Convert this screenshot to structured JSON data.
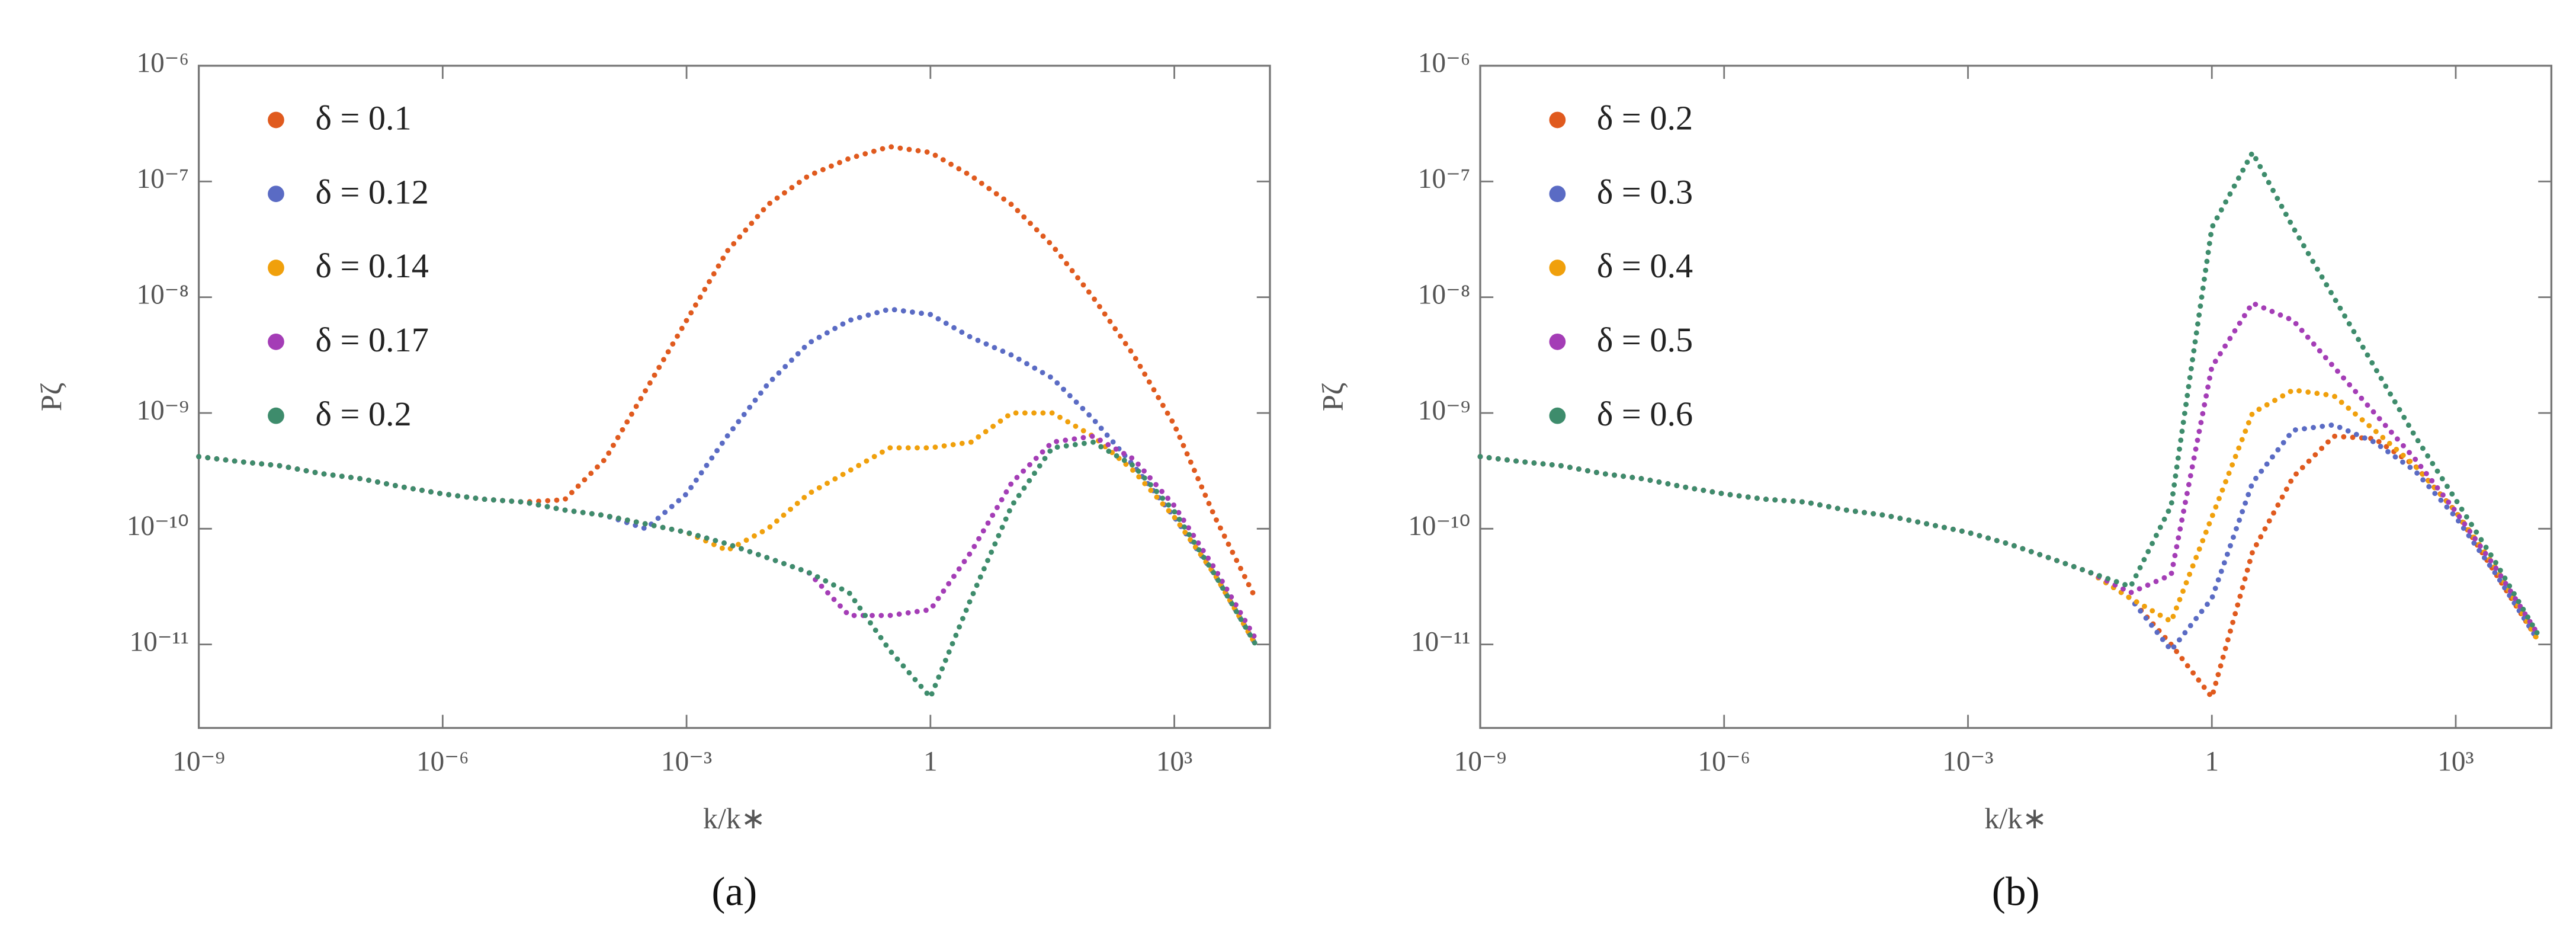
{
  "chart_data": [
    {
      "type": "line",
      "x_label": "k/k∗",
      "y_label": "Pζ",
      "panel_label": "(a)",
      "xscale": "log",
      "yscale": "log",
      "legend": "upper left",
      "xlim": [
        1e-09,
        15000
      ],
      "ylim": [
        1.9e-12,
        1e-06
      ],
      "xticks": [
        {
          "value": 1e-09,
          "label": "10⁻⁹"
        },
        {
          "value": 1e-06,
          "label": "10⁻⁶"
        },
        {
          "value": 0.001,
          "label": "10⁻³"
        },
        1,
        {
          "value": 1000,
          "label": "10³"
        }
      ],
      "yticks": [
        {
          "value": 1e-11,
          "label": "10⁻¹¹"
        },
        {
          "value": 1e-10,
          "label": "10⁻¹⁰"
        },
        {
          "value": 1e-09,
          "label": "10⁻⁹"
        },
        {
          "value": 1e-08,
          "label": "10⁻⁸"
        },
        {
          "value": 1e-07,
          "label": "10⁻⁷"
        },
        {
          "value": 1e-06,
          "label": "10⁻⁶"
        }
      ],
      "x": [
        1e-09,
        3.16e-09,
        1e-08,
        3.16e-08,
        1e-07,
        3.16e-07,
        1e-06,
        3.16e-06,
        1e-05,
        3.16e-05,
        0.0001,
        0.000316,
        0.001,
        0.00316,
        0.01,
        0.0316,
        0.1,
        0.316,
        1,
        3.16,
        10,
        31.6,
        100,
        316,
        1000,
        3160,
        10000
      ],
      "series": [
        {
          "name": "δ = 0.1",
          "color": "#e05a1e",
          "values": [
            4.2e-10,
            3.8e-10,
            3.5e-10,
            3e-10,
            2.7e-10,
            2.3e-10,
            2e-10,
            1.8e-10,
            1.7e-10,
            1.78e-10,
            4e-10,
            1.58e-09,
            6.3e-09,
            2.5e-08,
            6.3e-08,
            1.12e-07,
            1.58e-07,
            2e-07,
            1.78e-07,
            1.12e-07,
            6.3e-08,
            2.8e-08,
            1e-08,
            3.16e-09,
            7.9e-10,
            1.26e-10,
            2.5e-11
          ]
        },
        {
          "name": "δ = 0.12",
          "color": "#5a6bc4",
          "values": [
            4.2e-10,
            3.8e-10,
            3.5e-10,
            3e-10,
            2.7e-10,
            2.3e-10,
            2e-10,
            1.8e-10,
            1.7e-10,
            1.45e-10,
            1.3e-10,
            1e-10,
            2e-10,
            6.3e-10,
            1.78e-09,
            4e-09,
            6.3e-09,
            7.9e-09,
            7.1e-09,
            4.5e-09,
            3.16e-09,
            2e-09,
            8.9e-10,
            3.5e-10,
            1.26e-10,
            4e-11,
            1e-11
          ]
        },
        {
          "name": "δ = 0.14",
          "color": "#f0a00c",
          "values": [
            4.2e-10,
            3.8e-10,
            3.5e-10,
            3e-10,
            2.7e-10,
            2.3e-10,
            2e-10,
            1.8e-10,
            1.7e-10,
            1.45e-10,
            1.3e-10,
            1.1e-10,
            9.3e-11,
            6.5e-11,
            1e-10,
            2e-10,
            3.16e-10,
            5e-10,
            5e-10,
            5.6e-10,
            1e-09,
            1e-09,
            6.3e-10,
            3.16e-10,
            1.26e-10,
            4e-11,
            1e-11
          ]
        },
        {
          "name": "δ = 0.17",
          "color": "#a43db6",
          "values": [
            4.2e-10,
            3.8e-10,
            3.5e-10,
            3e-10,
            2.7e-10,
            2.3e-10,
            2e-10,
            1.8e-10,
            1.7e-10,
            1.45e-10,
            1.3e-10,
            1.1e-10,
            9.3e-11,
            7.4e-11,
            5.6e-11,
            4.2e-11,
            1.78e-11,
            1.78e-11,
            2e-11,
            6.3e-11,
            2.5e-10,
            5.6e-10,
            6.3e-10,
            4e-10,
            1.58e-10,
            4.5e-11,
            1.12e-11
          ]
        },
        {
          "name": "δ = 0.2",
          "color": "#3e8c6c",
          "values": [
            4.2e-10,
            3.8e-10,
            3.5e-10,
            3e-10,
            2.7e-10,
            2.3e-10,
            2e-10,
            1.8e-10,
            1.7e-10,
            1.45e-10,
            1.3e-10,
            1.1e-10,
            9.3e-11,
            7.4e-11,
            5.6e-11,
            4.2e-11,
            2.8e-11,
            8.9e-12,
            3.5e-12,
            2.5e-11,
            1.58e-10,
            5e-10,
            5.6e-10,
            3.5e-10,
            1.41e-10,
            4e-11,
            1e-11
          ]
        }
      ]
    },
    {
      "type": "line",
      "x_label": "k/k∗",
      "y_label": "Pζ",
      "panel_label": "(b)",
      "xscale": "log",
      "yscale": "log",
      "legend": "upper left",
      "xlim": [
        1e-09,
        15000
      ],
      "ylim": [
        1.9e-12,
        1e-06
      ],
      "xticks": [
        {
          "value": 1e-09,
          "label": "10⁻⁹"
        },
        {
          "value": 1e-06,
          "label": "10⁻⁶"
        },
        {
          "value": 0.001,
          "label": "10⁻³"
        },
        1,
        {
          "value": 1000,
          "label": "10³"
        }
      ],
      "yticks": [
        {
          "value": 1e-11,
          "label": "10⁻¹¹"
        },
        {
          "value": 1e-10,
          "label": "10⁻¹⁰"
        },
        {
          "value": 1e-09,
          "label": "10⁻⁹"
        },
        {
          "value": 1e-08,
          "label": "10⁻⁸"
        },
        {
          "value": 1e-07,
          "label": "10⁻⁷"
        },
        {
          "value": 1e-06,
          "label": "10⁻⁶"
        }
      ],
      "x": [
        1e-09,
        3.16e-09,
        1e-08,
        3.16e-08,
        1e-07,
        3.16e-07,
        1e-06,
        3.16e-06,
        1e-05,
        3.16e-05,
        0.0001,
        0.000316,
        0.001,
        0.00316,
        0.01,
        0.0316,
        0.1,
        0.316,
        1,
        3.16,
        10,
        31.6,
        100,
        316,
        1000,
        3160,
        10000
      ],
      "series": [
        {
          "name": "δ = 0.2",
          "color": "#e05a1e",
          "values": [
            4.2e-10,
            3.8e-10,
            3.5e-10,
            3e-10,
            2.7e-10,
            2.3e-10,
            2e-10,
            1.8e-10,
            1.7e-10,
            1.45e-10,
            1.3e-10,
            1.1e-10,
            9.3e-11,
            7.4e-11,
            5.6e-11,
            4.2e-11,
            2.5e-11,
            1e-11,
            3.5e-12,
            6.3e-11,
            2.8e-10,
            6.3e-10,
            6e-10,
            3.5e-10,
            1.41e-10,
            4e-11,
            1.12e-11
          ]
        },
        {
          "name": "δ = 0.3",
          "color": "#5a6bc4",
          "values": [
            4.2e-10,
            3.8e-10,
            3.5e-10,
            3e-10,
            2.7e-10,
            2.3e-10,
            2e-10,
            1.8e-10,
            1.7e-10,
            1.45e-10,
            1.3e-10,
            1.1e-10,
            9.3e-11,
            7.4e-11,
            5.6e-11,
            4.2e-11,
            2.5e-11,
            8.9e-12,
            2.5e-11,
            2.5e-10,
            7.1e-10,
            7.9e-10,
            5.6e-10,
            3.16e-10,
            1.26e-10,
            4e-11,
            1.12e-11
          ]
        },
        {
          "name": "δ = 0.4",
          "color": "#f0a00c",
          "values": [
            4.2e-10,
            3.8e-10,
            3.5e-10,
            3e-10,
            2.7e-10,
            2.3e-10,
            2e-10,
            1.8e-10,
            1.7e-10,
            1.45e-10,
            1.3e-10,
            1.1e-10,
            9.3e-11,
            7.4e-11,
            5.6e-11,
            4.2e-11,
            2.5e-11,
            1.58e-11,
            1.26e-10,
            1e-09,
            1.58e-09,
            1.41e-09,
            7.1e-10,
            3.5e-10,
            1.41e-10,
            4.5e-11,
            1.12e-11
          ]
        },
        {
          "name": "δ = 0.5",
          "color": "#a43db6",
          "values": [
            4.2e-10,
            3.8e-10,
            3.5e-10,
            3e-10,
            2.7e-10,
            2.3e-10,
            2e-10,
            1.8e-10,
            1.7e-10,
            1.45e-10,
            1.3e-10,
            1.1e-10,
            9.3e-11,
            7.4e-11,
            5.6e-11,
            4.2e-11,
            2.8e-11,
            4e-11,
            2.5e-09,
            8.9e-09,
            6.3e-09,
            2.5e-09,
            1e-09,
            4e-10,
            1.41e-10,
            4.5e-11,
            1.26e-11
          ]
        },
        {
          "name": "δ = 0.6",
          "color": "#3e8c6c",
          "values": [
            4.2e-10,
            3.8e-10,
            3.5e-10,
            3e-10,
            2.7e-10,
            2.3e-10,
            2e-10,
            1.8e-10,
            1.7e-10,
            1.45e-10,
            1.3e-10,
            1.1e-10,
            9.3e-11,
            7.4e-11,
            5.6e-11,
            4.2e-11,
            3.16e-11,
            1.58e-10,
            4e-08,
            1.78e-07,
            4e-08,
            1e-08,
            2.5e-09,
            6.3e-10,
            1.78e-10,
            5e-11,
            1.26e-11
          ]
        }
      ]
    }
  ]
}
